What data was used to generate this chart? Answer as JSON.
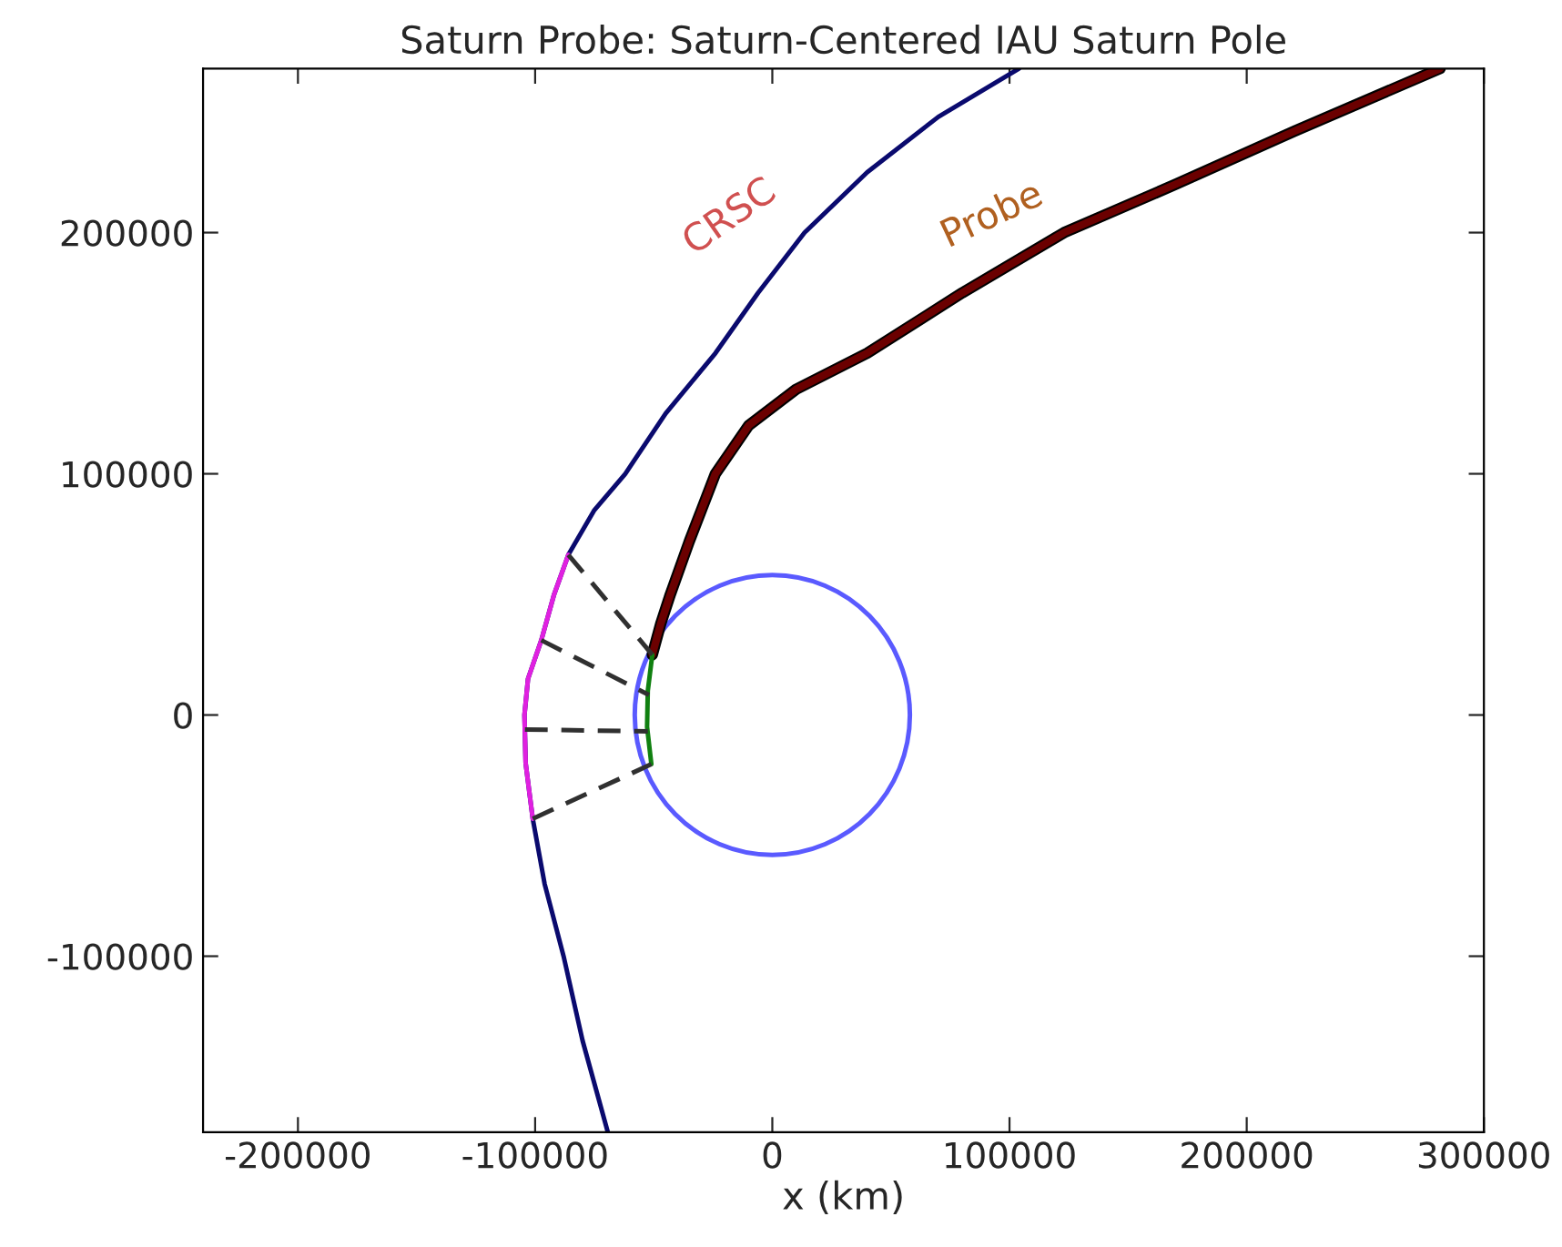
{
  "chart_data": {
    "type": "line",
    "title": "Saturn Probe: Saturn-Centered IAU Saturn Pole",
    "xlabel": "x (km)",
    "xlim": [
      -240000,
      300000
    ],
    "ylim": [
      -173000,
      268000
    ],
    "xticks": [
      -200000,
      -100000,
      0,
      100000,
      200000,
      300000
    ],
    "yticks": [
      -100000,
      0,
      100000,
      200000
    ],
    "grid": false,
    "marker": "none",
    "series": [
      {
        "name": "CRSC",
        "color": "#0a0a6e",
        "line_style": "solid",
        "x": [
          -69400,
          -80000,
          -88000,
          -96000,
          -101000,
          -104000,
          -104500,
          -103000,
          -97400,
          -92000,
          -86000,
          -75000,
          -62000,
          -45000,
          -24000,
          -6000,
          13600,
          40000,
          70000,
          104000
        ],
        "values": [
          -172800,
          -135000,
          -100000,
          -70000,
          -43000,
          -20000,
          0,
          15000,
          31000,
          50000,
          66400,
          85000,
          100000,
          125000,
          150000,
          175000,
          200000,
          225000,
          248000,
          268000
        ]
      },
      {
        "color": "#e020e0",
        "line_style": "solid",
        "x": [
          -101000,
          -104000,
          -104500,
          -103000,
          -97400,
          -92000,
          -86000
        ],
        "values": [
          -43000,
          -20000,
          0,
          15000,
          31000,
          50000,
          66400
        ]
      },
      {
        "name": "Probe",
        "color": "#6b0000",
        "line_style": "solid",
        "x": [
          -50600,
          -47000,
          -43000,
          -35000,
          -24000,
          -10000,
          10000,
          40000,
          80000,
          123000,
          170000,
          220000,
          281500
        ],
        "values": [
          25000,
          38000,
          50000,
          72000,
          100000,
          120000,
          135000,
          150000,
          175000,
          200000,
          220000,
          242000,
          268000
        ]
      },
      {
        "color": "#108010",
        "line_style": "solid",
        "x": [
          -50600,
          -52500,
          -52800,
          -51000
        ],
        "values": [
          25000,
          10000,
          -5000,
          -20400
        ]
      },
      {
        "color": "#303030",
        "line_style": "dashed",
        "x": [
          -86000,
          -50600
        ],
        "values": [
          66400,
          25000
        ]
      },
      {
        "color": "#303030",
        "line_style": "dashed",
        "x": [
          -97400,
          -52000
        ],
        "values": [
          31000,
          8300
        ]
      },
      {
        "color": "#303030",
        "line_style": "dashed",
        "x": [
          -104300,
          -52500
        ],
        "values": [
          -6000,
          -6800
        ]
      },
      {
        "color": "#303030",
        "line_style": "dashed",
        "x": [
          -101000,
          -51000
        ],
        "values": [
          -43000,
          -20400
        ]
      }
    ]
  }
}
